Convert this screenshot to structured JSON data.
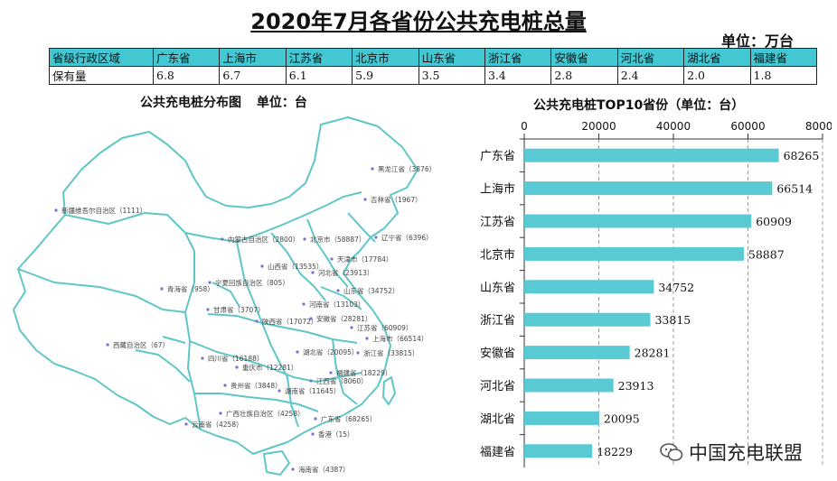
{
  "title": "2020年7月各省份公共充电桩总量",
  "unit_top": "单位：万台",
  "stock_table": {
    "header": [
      "省级行政区域",
      "广东省",
      "上海市",
      "江苏省",
      "北京市",
      "山东省",
      "浙江省",
      "安徽省",
      "河北省",
      "湖北省",
      "福建省"
    ],
    "row": [
      "保有量",
      "6.8",
      "6.7",
      "6.1",
      "5.9",
      "3.5",
      "3.4",
      "2.8",
      "2.4",
      "2.0",
      "1.8"
    ]
  },
  "map": {
    "title": "公共充电桩分布图",
    "unit": "单位：台",
    "labels": [
      "黑龙江省（3876）",
      "吉林省（1967）",
      "辽宁省（6396）",
      "新疆维吾尔自治区（1111）",
      "内蒙古自治区（2800）",
      "北京市（58887）",
      "天津市（17784）",
      "河北省（23913）",
      "山西省（13535）",
      "山东省（34752）",
      "宁夏回族自治区（805）",
      "青海省（958）",
      "甘肃省（3707）",
      "陕西省（17072）",
      "河南省（13103）",
      "安徽省（28281）",
      "江苏省（60909）",
      "上海市（66514）",
      "浙江省（33815）",
      "湖北省（20095）",
      "西藏自治区（67）",
      "四川省（16188）",
      "重庆市（12281）",
      "福建省（18229）",
      "江西省（8060）",
      "贵州省（3848）",
      "湖南省（11645）",
      "广西壮族自治区（4258）",
      "广东省（68265）",
      "云南省（4258）",
      "香港（15）",
      "海南省（4387）"
    ]
  },
  "chart_data": {
    "type": "bar",
    "orientation": "horizontal",
    "title": "公共充电桩TOP10省份（单位：台）",
    "categories": [
      "广东省",
      "上海市",
      "江苏省",
      "北京市",
      "山东省",
      "浙江省",
      "安徽省",
      "河北省",
      "湖北省",
      "福建省"
    ],
    "values": [
      68265,
      66514,
      60909,
      58887,
      34752,
      33815,
      28281,
      23913,
      20095,
      18229
    ],
    "xlim": [
      0,
      80000
    ],
    "xticks": [
      "0",
      "20000",
      "40000",
      "60000",
      "80000"
    ],
    "xlabel": "",
    "ylabel": "",
    "grid": true,
    "bar_color": "#59c9d4"
  },
  "watermark": "中国充电联盟",
  "colors": {
    "accent": "#43c7d2",
    "map_border": "#5fc6c8",
    "bar": "#59c9d4"
  }
}
